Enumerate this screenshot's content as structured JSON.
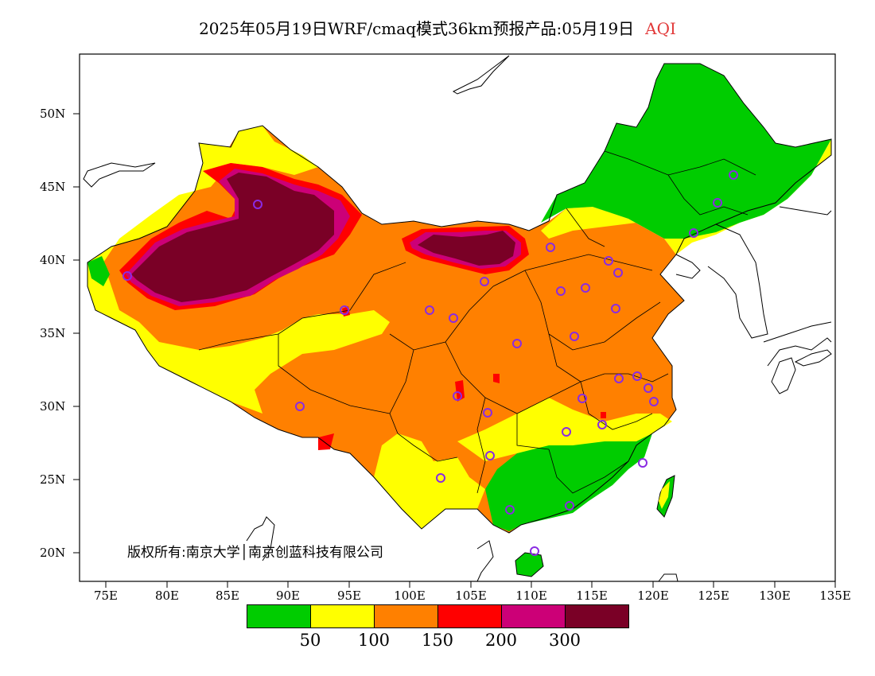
{
  "title": {
    "main": "2025年05月19日WRF/cmaq模式36km预报产品:05月19日",
    "variable": "AQI"
  },
  "axes": {
    "y_ticks": [
      "50N",
      "45N",
      "40N",
      "35N",
      "30N",
      "25N",
      "20N"
    ],
    "x_ticks": [
      "75E",
      "80E",
      "85E",
      "90E",
      "95E",
      "100E",
      "105E",
      "110E",
      "115E",
      "120E",
      "125E",
      "130E",
      "135E"
    ]
  },
  "legend": {
    "colors": [
      "#00cc00",
      "#ffff00",
      "#ff8000",
      "#ff0000",
      "#cc0077",
      "#7a0026"
    ],
    "labels": [
      "50",
      "100",
      "150",
      "200",
      "300"
    ]
  },
  "copyright": "版权所有:南京大学│南京创蓝科技有限公司",
  "colors": {
    "good": "#00cc00",
    "moderate": "#ffff00",
    "unhealthy_sensitive": "#ff8000",
    "unhealthy": "#ff0000",
    "very_unhealthy": "#cc0077",
    "hazardous": "#7a0026",
    "station_marker": "#8a2be2",
    "title_accent": "#e23b3b"
  }
}
